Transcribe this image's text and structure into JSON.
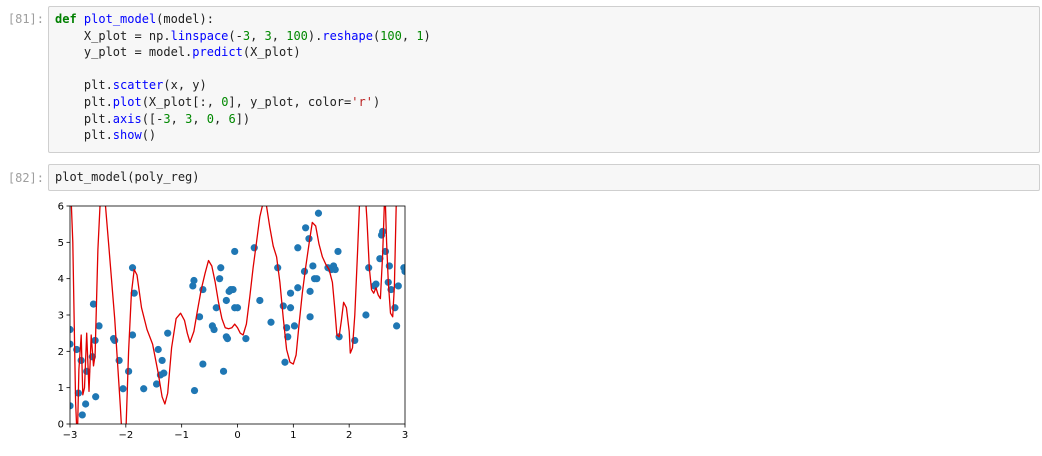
{
  "cells": [
    {
      "prompt": "[81]:",
      "lines": [
        [
          {
            "t": "def",
            "c": "kw"
          },
          {
            "t": " ",
            "c": "pl"
          },
          {
            "t": "plot_model",
            "c": "fn"
          },
          {
            "t": "(model):",
            "c": "pl"
          }
        ],
        [
          {
            "t": "    X_plot = np.",
            "c": "pl"
          },
          {
            "t": "linspace",
            "c": "fn"
          },
          {
            "t": "(-",
            "c": "pl"
          },
          {
            "t": "3",
            "c": "nm"
          },
          {
            "t": ", ",
            "c": "pl"
          },
          {
            "t": "3",
            "c": "nm"
          },
          {
            "t": ", ",
            "c": "pl"
          },
          {
            "t": "100",
            "c": "nm"
          },
          {
            "t": ").",
            "c": "pl"
          },
          {
            "t": "reshape",
            "c": "fn"
          },
          {
            "t": "(",
            "c": "pl"
          },
          {
            "t": "100",
            "c": "nm"
          },
          {
            "t": ", ",
            "c": "pl"
          },
          {
            "t": "1",
            "c": "nm"
          },
          {
            "t": ")",
            "c": "pl"
          }
        ],
        [
          {
            "t": "    y_plot = model.",
            "c": "pl"
          },
          {
            "t": "predict",
            "c": "fn"
          },
          {
            "t": "(X_plot)",
            "c": "pl"
          }
        ],
        [
          {
            "t": "",
            "c": "pl"
          }
        ],
        [
          {
            "t": "    plt.",
            "c": "pl"
          },
          {
            "t": "scatter",
            "c": "fn"
          },
          {
            "t": "(x, y)",
            "c": "pl"
          }
        ],
        [
          {
            "t": "    plt.",
            "c": "pl"
          },
          {
            "t": "plot",
            "c": "fn"
          },
          {
            "t": "(X_plot[:, ",
            "c": "pl"
          },
          {
            "t": "0",
            "c": "nm"
          },
          {
            "t": "], y_plot, color=",
            "c": "pl"
          },
          {
            "t": "'r'",
            "c": "st"
          },
          {
            "t": ")",
            "c": "pl"
          }
        ],
        [
          {
            "t": "    plt.",
            "c": "pl"
          },
          {
            "t": "axis",
            "c": "fn"
          },
          {
            "t": "([-",
            "c": "pl"
          },
          {
            "t": "3",
            "c": "nm"
          },
          {
            "t": ", ",
            "c": "pl"
          },
          {
            "t": "3",
            "c": "nm"
          },
          {
            "t": ", ",
            "c": "pl"
          },
          {
            "t": "0",
            "c": "nm"
          },
          {
            "t": ", ",
            "c": "pl"
          },
          {
            "t": "6",
            "c": "nm"
          },
          {
            "t": "])",
            "c": "pl"
          }
        ],
        [
          {
            "t": "    plt.",
            "c": "pl"
          },
          {
            "t": "show",
            "c": "fn"
          },
          {
            "t": "()",
            "c": "pl"
          }
        ]
      ]
    },
    {
      "prompt": "[82]:",
      "lines": [
        [
          {
            "t": "plot_model(poly_reg)",
            "c": "pl"
          }
        ]
      ]
    }
  ],
  "colors": {
    "scatter": "#1f77b4",
    "line": "#e00000",
    "keyword": "#008000",
    "function": "#0000ff",
    "number": "#008800",
    "string": "#ba2121"
  },
  "chart_data": {
    "type": "scatter",
    "xlim": [
      -3,
      3
    ],
    "ylim": [
      0,
      6
    ],
    "xticks": [
      "−3",
      "−2",
      "−1",
      "0",
      "1",
      "2",
      "3"
    ],
    "yticks": [
      "0",
      "1",
      "2",
      "3",
      "4",
      "5",
      "6"
    ],
    "grid": false,
    "series": [
      {
        "kind": "scatter",
        "points": [
          [
            -3.0,
            2.6
          ],
          [
            -3.0,
            0.5
          ],
          [
            -3.0,
            2.2
          ],
          [
            -2.88,
            2.05
          ],
          [
            -2.85,
            0.85
          ],
          [
            -2.8,
            1.75
          ],
          [
            -2.78,
            0.25
          ],
          [
            -2.72,
            0.55
          ],
          [
            -2.7,
            1.45
          ],
          [
            -2.6,
            1.85
          ],
          [
            -2.58,
            3.3
          ],
          [
            -2.55,
            2.3
          ],
          [
            -2.54,
            0.75
          ],
          [
            -2.48,
            2.7
          ],
          [
            -2.22,
            2.35
          ],
          [
            -2.2,
            2.3
          ],
          [
            -2.12,
            1.75
          ],
          [
            -2.05,
            0.97
          ],
          [
            -1.95,
            1.45
          ],
          [
            -1.88,
            4.3
          ],
          [
            -1.85,
            3.6
          ],
          [
            -1.88,
            2.45
          ],
          [
            -1.68,
            0.97
          ],
          [
            -1.45,
            1.1
          ],
          [
            -1.42,
            2.05
          ],
          [
            -1.38,
            1.35
          ],
          [
            -1.35,
            1.75
          ],
          [
            -1.32,
            1.4
          ],
          [
            -1.25,
            2.5
          ],
          [
            -0.8,
            3.8
          ],
          [
            -0.78,
            3.95
          ],
          [
            -0.77,
            0.92
          ],
          [
            -0.68,
            2.95
          ],
          [
            -0.62,
            3.7
          ],
          [
            -0.62,
            1.65
          ],
          [
            -0.45,
            2.7
          ],
          [
            -0.42,
            2.6
          ],
          [
            -0.38,
            3.2
          ],
          [
            -0.32,
            4.0
          ],
          [
            -0.3,
            4.3
          ],
          [
            -0.25,
            1.45
          ],
          [
            -0.2,
            3.4
          ],
          [
            -0.2,
            2.4
          ],
          [
            -0.18,
            2.35
          ],
          [
            -0.15,
            3.65
          ],
          [
            -0.12,
            3.7
          ],
          [
            -0.08,
            3.7
          ],
          [
            -0.05,
            4.75
          ],
          [
            -0.05,
            3.2
          ],
          [
            0.0,
            3.2
          ],
          [
            0.15,
            2.35
          ],
          [
            0.3,
            4.85
          ],
          [
            0.4,
            3.4
          ],
          [
            0.6,
            2.8
          ],
          [
            0.72,
            4.3
          ],
          [
            0.82,
            3.25
          ],
          [
            0.85,
            1.7
          ],
          [
            0.88,
            2.65
          ],
          [
            0.9,
            2.4
          ],
          [
            0.95,
            3.6
          ],
          [
            0.95,
            3.2
          ],
          [
            1.02,
            2.7
          ],
          [
            1.08,
            4.85
          ],
          [
            1.08,
            3.75
          ],
          [
            1.2,
            4.2
          ],
          [
            1.22,
            5.4
          ],
          [
            1.28,
            5.1
          ],
          [
            1.3,
            3.65
          ],
          [
            1.3,
            2.95
          ],
          [
            1.35,
            4.35
          ],
          [
            1.38,
            4.0
          ],
          [
            1.42,
            4.0
          ],
          [
            1.45,
            5.8
          ],
          [
            1.62,
            4.3
          ],
          [
            1.68,
            4.25
          ],
          [
            1.72,
            4.35
          ],
          [
            1.75,
            4.25
          ],
          [
            1.8,
            4.75
          ],
          [
            1.82,
            2.4
          ],
          [
            2.1,
            2.3
          ],
          [
            2.3,
            3.0
          ],
          [
            2.35,
            4.3
          ],
          [
            2.45,
            3.8
          ],
          [
            2.48,
            3.85
          ],
          [
            2.55,
            4.55
          ],
          [
            2.58,
            5.2
          ],
          [
            2.6,
            5.3
          ],
          [
            2.65,
            4.75
          ],
          [
            2.7,
            3.9
          ],
          [
            2.72,
            4.35
          ],
          [
            2.75,
            3.7
          ],
          [
            2.82,
            3.2
          ],
          [
            2.85,
            2.7
          ],
          [
            2.88,
            3.8
          ],
          [
            2.98,
            4.3
          ],
          [
            3.0,
            4.2
          ]
        ]
      },
      {
        "kind": "line",
        "points": [
          [
            -3.0,
            7.0
          ],
          [
            -2.95,
            5.0
          ],
          [
            -2.9,
            0.6
          ],
          [
            -2.87,
            -0.5
          ],
          [
            -2.84,
            1.5
          ],
          [
            -2.8,
            2.45
          ],
          [
            -2.77,
            0.8
          ],
          [
            -2.74,
            1.0
          ],
          [
            -2.7,
            2.5
          ],
          [
            -2.66,
            0.9
          ],
          [
            -2.62,
            2.45
          ],
          [
            -2.58,
            1.6
          ],
          [
            -2.55,
            1.9
          ],
          [
            -2.5,
            4.8
          ],
          [
            -2.45,
            6.4
          ],
          [
            -2.38,
            6.3
          ],
          [
            -2.3,
            4.8
          ],
          [
            -2.2,
            2.9
          ],
          [
            -2.1,
            0.5
          ],
          [
            -2.05,
            -0.8
          ],
          [
            -2.0,
            -0.3
          ],
          [
            -1.95,
            2.0
          ],
          [
            -1.9,
            3.6
          ],
          [
            -1.85,
            4.25
          ],
          [
            -1.8,
            4.1
          ],
          [
            -1.72,
            3.2
          ],
          [
            -1.62,
            2.6
          ],
          [
            -1.52,
            2.2
          ],
          [
            -1.42,
            1.4
          ],
          [
            -1.35,
            0.75
          ],
          [
            -1.3,
            0.55
          ],
          [
            -1.25,
            0.85
          ],
          [
            -1.18,
            2.1
          ],
          [
            -1.1,
            2.9
          ],
          [
            -1.02,
            3.05
          ],
          [
            -0.95,
            2.85
          ],
          [
            -0.9,
            2.5
          ],
          [
            -0.85,
            2.25
          ],
          [
            -0.78,
            2.55
          ],
          [
            -0.72,
            3.1
          ],
          [
            -0.65,
            3.7
          ],
          [
            -0.58,
            4.15
          ],
          [
            -0.52,
            4.5
          ],
          [
            -0.46,
            4.35
          ],
          [
            -0.4,
            3.9
          ],
          [
            -0.34,
            3.35
          ],
          [
            -0.28,
            2.9
          ],
          [
            -0.22,
            2.65
          ],
          [
            -0.16,
            2.62
          ],
          [
            -0.1,
            2.65
          ],
          [
            -0.05,
            2.75
          ],
          [
            0.0,
            2.65
          ],
          [
            0.05,
            2.5
          ],
          [
            0.1,
            2.45
          ],
          [
            0.16,
            2.75
          ],
          [
            0.22,
            3.5
          ],
          [
            0.28,
            4.3
          ],
          [
            0.34,
            5.0
          ],
          [
            0.4,
            5.7
          ],
          [
            0.46,
            6.1
          ],
          [
            0.52,
            6.0
          ],
          [
            0.58,
            5.4
          ],
          [
            0.64,
            4.9
          ],
          [
            0.7,
            4.6
          ],
          [
            0.76,
            3.9
          ],
          [
            0.82,
            2.9
          ],
          [
            0.88,
            2.05
          ],
          [
            0.94,
            1.7
          ],
          [
            1.0,
            1.65
          ],
          [
            1.05,
            1.9
          ],
          [
            1.1,
            2.7
          ],
          [
            1.16,
            3.6
          ],
          [
            1.22,
            4.3
          ],
          [
            1.28,
            4.95
          ],
          [
            1.34,
            5.55
          ],
          [
            1.4,
            5.45
          ],
          [
            1.46,
            4.95
          ],
          [
            1.52,
            4.6
          ],
          [
            1.58,
            4.4
          ],
          [
            1.64,
            4.25
          ],
          [
            1.7,
            3.9
          ],
          [
            1.74,
            3.2
          ],
          [
            1.78,
            2.45
          ],
          [
            1.82,
            2.4
          ],
          [
            1.86,
            2.85
          ],
          [
            1.9,
            3.35
          ],
          [
            1.95,
            3.2
          ],
          [
            2.0,
            2.55
          ],
          [
            2.02,
            1.95
          ],
          [
            2.06,
            2.1
          ],
          [
            2.1,
            3.0
          ],
          [
            2.15,
            4.7
          ],
          [
            2.2,
            6.6
          ],
          [
            2.26,
            7.0
          ],
          [
            2.32,
            5.6
          ],
          [
            2.36,
            4.3
          ],
          [
            2.4,
            3.7
          ],
          [
            2.44,
            3.6
          ],
          [
            2.48,
            3.75
          ],
          [
            2.52,
            3.55
          ],
          [
            2.56,
            3.45
          ],
          [
            2.6,
            4.7
          ],
          [
            2.64,
            6.5
          ],
          [
            2.67,
            5.0
          ],
          [
            2.7,
            3.9
          ],
          [
            2.74,
            3.05
          ],
          [
            2.78,
            2.95
          ],
          [
            2.81,
            3.8
          ],
          [
            2.85,
            6.5
          ],
          [
            2.9,
            7.0
          ]
        ]
      }
    ]
  }
}
